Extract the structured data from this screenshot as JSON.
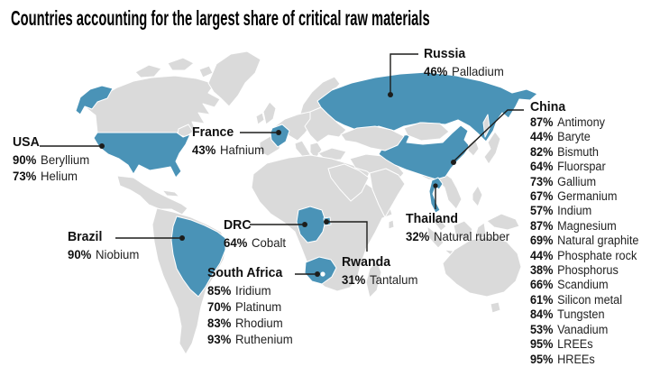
{
  "title": "Countries accounting for the largest share of critical raw materials",
  "colors": {
    "highlight": "#4a93b7",
    "land": "#dadada",
    "leader": "#1d1d1b",
    "text": "#1a1a1a"
  },
  "countries": [
    {
      "id": "usa",
      "name": "USA",
      "materials": [
        {
          "pct": "90%",
          "material": "Beryllium"
        },
        {
          "pct": "73%",
          "material": "Helium"
        }
      ]
    },
    {
      "id": "france",
      "name": "France",
      "materials": [
        {
          "pct": "43%",
          "material": "Hafnium"
        }
      ]
    },
    {
      "id": "russia",
      "name": "Russia",
      "materials": [
        {
          "pct": "46%",
          "material": "Palladium"
        }
      ]
    },
    {
      "id": "brazil",
      "name": "Brazil",
      "materials": [
        {
          "pct": "90%",
          "material": "Niobium"
        }
      ]
    },
    {
      "id": "drc",
      "name": "DRC",
      "materials": [
        {
          "pct": "64%",
          "material": "Cobalt"
        }
      ]
    },
    {
      "id": "south-africa",
      "name": "South Africa",
      "materials": [
        {
          "pct": "85%",
          "material": "Iridium"
        },
        {
          "pct": "70%",
          "material": "Platinum"
        },
        {
          "pct": "83%",
          "material": "Rhodium"
        },
        {
          "pct": "93%",
          "material": "Ruthenium"
        }
      ]
    },
    {
      "id": "rwanda",
      "name": "Rwanda",
      "materials": [
        {
          "pct": "31%",
          "material": "Tantalum"
        }
      ]
    },
    {
      "id": "thailand",
      "name": "Thailand",
      "materials": [
        {
          "pct": "32%",
          "material": "Natural rubber"
        }
      ]
    },
    {
      "id": "china",
      "name": "China",
      "materials": [
        {
          "pct": "87%",
          "material": "Antimony"
        },
        {
          "pct": "44%",
          "material": "Baryte"
        },
        {
          "pct": "82%",
          "material": "Bismuth"
        },
        {
          "pct": "64%",
          "material": "Fluorspar"
        },
        {
          "pct": "73%",
          "material": "Gallium"
        },
        {
          "pct": "67%",
          "material": "Germanium"
        },
        {
          "pct": "57%",
          "material": "Indium"
        },
        {
          "pct": "87%",
          "material": "Magnesium"
        },
        {
          "pct": "69%",
          "material": "Natural graphite"
        },
        {
          "pct": "44%",
          "material": "Phosphate rock"
        },
        {
          "pct": "38%",
          "material": "Phosphorus"
        },
        {
          "pct": "66%",
          "material": "Scandium"
        },
        {
          "pct": "61%",
          "material": "Silicon metal"
        },
        {
          "pct": "84%",
          "material": "Tungsten"
        },
        {
          "pct": "53%",
          "material": "Vanadium"
        },
        {
          "pct": "95%",
          "material": "LREEs"
        },
        {
          "pct": "95%",
          "material": "HREEs"
        }
      ]
    }
  ]
}
